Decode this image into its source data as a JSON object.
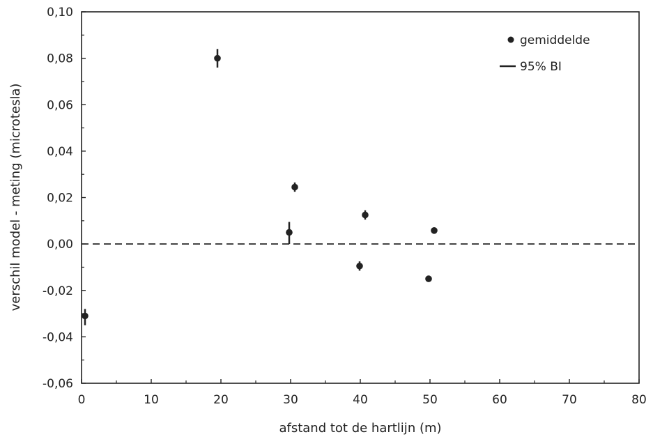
{
  "chart_data": {
    "type": "scatter",
    "xlabel": "afstand tot de hartlijn (m)",
    "ylabel": "verschil model - meting (microtesla)",
    "xlim": [
      0,
      80
    ],
    "ylim": [
      -0.06,
      0.1
    ],
    "x_ticks": [
      0,
      10,
      20,
      30,
      40,
      50,
      60,
      70,
      80
    ],
    "x_tick_labels": [
      "0",
      "10",
      "20",
      "30",
      "40",
      "50",
      "60",
      "70",
      "80"
    ],
    "y_ticks": [
      -0.06,
      -0.04,
      -0.02,
      0.0,
      0.02,
      0.04,
      0.06,
      0.08,
      0.1
    ],
    "y_tick_labels": [
      "-0,06",
      "-0,04",
      "-0,02",
      "0,00",
      "0,02",
      "0,04",
      "0,06",
      "0,08",
      "0,10"
    ],
    "grid": false,
    "legend_position": "top-right",
    "legend": {
      "mean_label": "gemiddelde",
      "ci_label": "95% BI"
    },
    "reference_line": {
      "y": 0,
      "style": "dashed"
    },
    "series": [
      {
        "name": "gemiddelde",
        "points": [
          {
            "x": 0.5,
            "y": -0.031,
            "ci_low": -0.035,
            "ci_high": -0.028
          },
          {
            "x": 19.5,
            "y": 0.08,
            "ci_low": 0.076,
            "ci_high": 0.084
          },
          {
            "x": 29.8,
            "y": 0.005,
            "ci_low": 0.0,
            "ci_high": 0.0095
          },
          {
            "x": 30.6,
            "y": 0.0245,
            "ci_low": 0.0225,
            "ci_high": 0.0265
          },
          {
            "x": 39.9,
            "y": -0.0095,
            "ci_low": -0.0115,
            "ci_high": -0.0075
          },
          {
            "x": 40.7,
            "y": 0.0125,
            "ci_low": 0.0105,
            "ci_high": 0.0145
          },
          {
            "x": 49.8,
            "y": -0.015,
            "ci_low": -0.0155,
            "ci_high": -0.0145
          },
          {
            "x": 50.6,
            "y": 0.0058,
            "ci_low": 0.0053,
            "ci_high": 0.0063
          }
        ]
      }
    ]
  }
}
